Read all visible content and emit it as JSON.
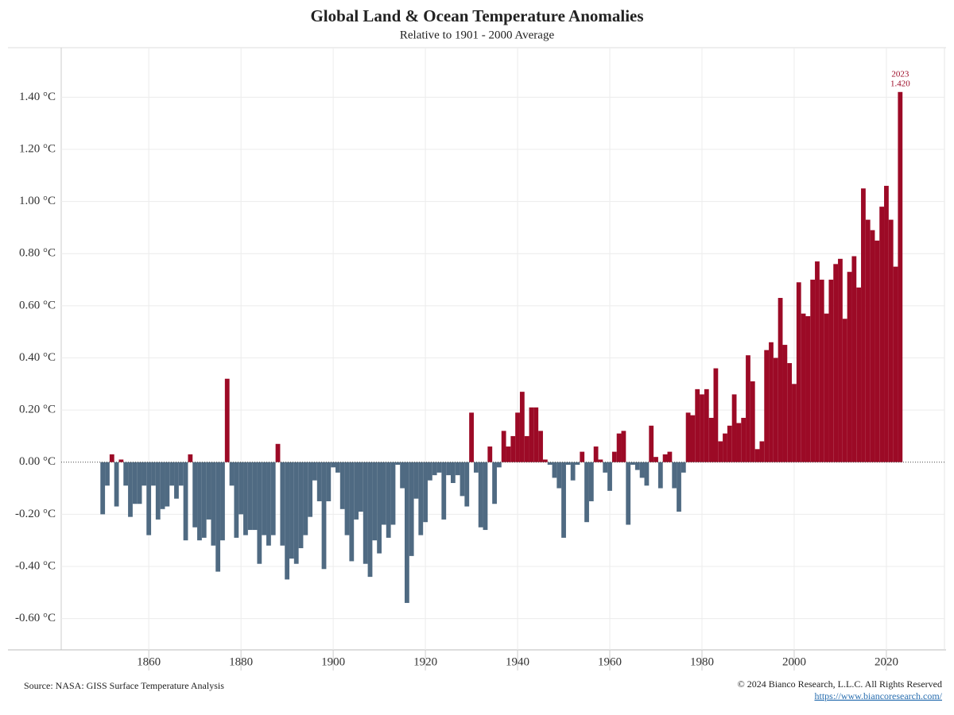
{
  "chart_data": {
    "type": "bar",
    "title": "Global Land & Ocean Temperature Anomalies",
    "subtitle": "Relative to 1901 - 2000 Average",
    "source": "Source: NASA: GISS Surface Temperature Analysis",
    "copyright": "© 2024 Bianco Research, L.L.C. All Rights Reserved",
    "url": "https://www.biancoresearch.com/",
    "positive_color": "#9c0a26",
    "negative_color": "#4f6a82",
    "grid": true,
    "x": [
      1850,
      1851,
      1852,
      1853,
      1854,
      1855,
      1856,
      1857,
      1858,
      1859,
      1860,
      1861,
      1862,
      1863,
      1864,
      1865,
      1866,
      1867,
      1868,
      1869,
      1870,
      1871,
      1872,
      1873,
      1874,
      1875,
      1876,
      1877,
      1878,
      1879,
      1880,
      1881,
      1882,
      1883,
      1884,
      1885,
      1886,
      1887,
      1888,
      1889,
      1890,
      1891,
      1892,
      1893,
      1894,
      1895,
      1896,
      1897,
      1898,
      1899,
      1900,
      1901,
      1902,
      1903,
      1904,
      1905,
      1906,
      1907,
      1908,
      1909,
      1910,
      1911,
      1912,
      1913,
      1914,
      1915,
      1916,
      1917,
      1918,
      1919,
      1920,
      1921,
      1922,
      1923,
      1924,
      1925,
      1926,
      1927,
      1928,
      1929,
      1930,
      1931,
      1932,
      1933,
      1934,
      1935,
      1936,
      1937,
      1938,
      1939,
      1940,
      1941,
      1942,
      1943,
      1944,
      1945,
      1946,
      1947,
      1948,
      1949,
      1950,
      1951,
      1952,
      1953,
      1954,
      1955,
      1956,
      1957,
      1958,
      1959,
      1960,
      1961,
      1962,
      1963,
      1964,
      1965,
      1966,
      1967,
      1968,
      1969,
      1970,
      1971,
      1972,
      1973,
      1974,
      1975,
      1976,
      1977,
      1978,
      1979,
      1980,
      1981,
      1982,
      1983,
      1984,
      1985,
      1986,
      1987,
      1988,
      1989,
      1990,
      1991,
      1992,
      1993,
      1994,
      1995,
      1996,
      1997,
      1998,
      1999,
      2000,
      2001,
      2002,
      2003,
      2004,
      2005,
      2006,
      2007,
      2008,
      2009,
      2010,
      2011,
      2012,
      2013,
      2014,
      2015,
      2016,
      2017,
      2018,
      2019,
      2020,
      2021,
      2022,
      2023
    ],
    "values": [
      -0.2,
      -0.09,
      0.03,
      -0.17,
      0.01,
      -0.09,
      -0.21,
      -0.16,
      -0.16,
      -0.09,
      -0.28,
      -0.09,
      -0.22,
      -0.18,
      -0.17,
      -0.09,
      -0.14,
      -0.09,
      -0.3,
      0.03,
      -0.25,
      -0.3,
      -0.29,
      -0.22,
      -0.32,
      -0.42,
      -0.3,
      0.32,
      -0.09,
      -0.29,
      -0.2,
      -0.28,
      -0.26,
      -0.26,
      -0.39,
      -0.28,
      -0.32,
      -0.28,
      0.07,
      -0.32,
      -0.45,
      -0.37,
      -0.39,
      -0.33,
      -0.28,
      -0.21,
      -0.07,
      -0.15,
      -0.41,
      -0.15,
      -0.02,
      -0.04,
      -0.18,
      -0.28,
      -0.38,
      -0.22,
      -0.19,
      -0.39,
      -0.44,
      -0.3,
      -0.35,
      -0.24,
      -0.29,
      -0.24,
      -0.01,
      -0.1,
      -0.54,
      -0.36,
      -0.14,
      -0.28,
      -0.23,
      -0.07,
      -0.05,
      -0.04,
      -0.22,
      -0.05,
      -0.08,
      -0.05,
      -0.13,
      -0.17,
      0.19,
      -0.04,
      -0.25,
      -0.26,
      0.06,
      -0.16,
      -0.02,
      0.12,
      0.06,
      0.1,
      0.19,
      0.27,
      0.1,
      0.21,
      0.21,
      0.12,
      0.01,
      -0.01,
      -0.06,
      -0.1,
      -0.29,
      -0.01,
      -0.07,
      -0.01,
      0.04,
      -0.23,
      -0.15,
      0.06,
      0.01,
      -0.04,
      -0.11,
      0.04,
      0.11,
      0.12,
      -0.24,
      -0.01,
      -0.03,
      -0.06,
      -0.09,
      0.14,
      0.02,
      -0.1,
      0.03,
      0.04,
      -0.1,
      -0.19,
      -0.04,
      0.19,
      0.18,
      0.28,
      0.26,
      0.28,
      0.17,
      0.36,
      0.08,
      0.11,
      0.14,
      0.26,
      0.15,
      0.17,
      0.41,
      0.31,
      0.05,
      0.08,
      0.43,
      0.46,
      0.4,
      0.63,
      0.45,
      0.38,
      0.3,
      0.69,
      0.57,
      0.56,
      0.7,
      0.77,
      0.7,
      0.57,
      0.7,
      0.76,
      0.78,
      0.55,
      0.73,
      0.79,
      0.67,
      1.05,
      0.93,
      0.89,
      0.85,
      0.98,
      1.06,
      0.93,
      0.75,
      1.42
    ],
    "annotation": {
      "x": 2023,
      "y": 1.42,
      "x_label": "2023",
      "value_label": "1.420"
    },
    "xlim": [
      1841,
      2032.6
    ],
    "xticks": [
      1860,
      1880,
      1900,
      1920,
      1940,
      1960,
      1980,
      2000,
      2020
    ],
    "ylim": [
      -0.72,
      1.59
    ],
    "yticks": [
      {
        "value": -0.6,
        "label": "-0.60 °C"
      },
      {
        "value": -0.4,
        "label": "-0.40 °C"
      },
      {
        "value": -0.2,
        "label": "-0.20 °C"
      },
      {
        "value": 0,
        "label": "0.00 °C"
      },
      {
        "value": 0.2,
        "label": "0.20 °C"
      },
      {
        "value": 0.4,
        "label": "0.40 °C"
      },
      {
        "value": 0.6,
        "label": "0.60 °C"
      },
      {
        "value": 0.8,
        "label": "0.80 °C"
      },
      {
        "value": 1.0,
        "label": "1.00 °C"
      },
      {
        "value": 1.2,
        "label": "1.20 °C"
      },
      {
        "value": 1.4,
        "label": "1.40 °C"
      }
    ]
  }
}
